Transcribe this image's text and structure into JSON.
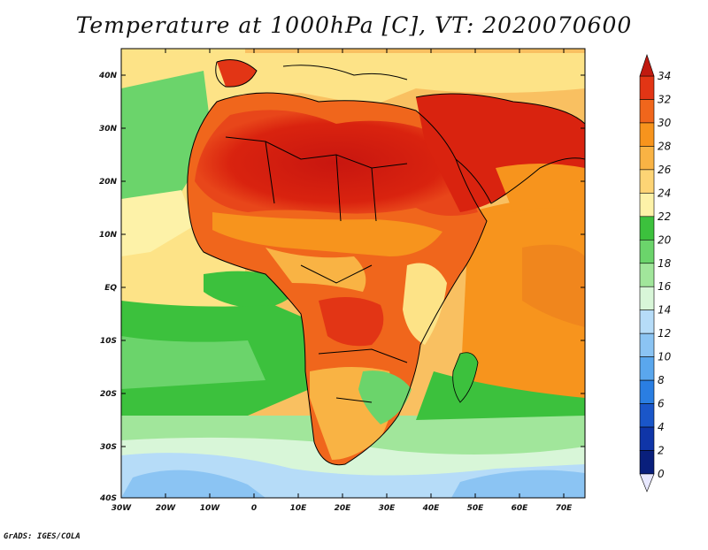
{
  "title": "Temperature at 1000hPa [C], VT: 2020070600",
  "credit": "GrADS: IGES/COLA",
  "map": {
    "lat_labels": [
      "40N",
      "30N",
      "20N",
      "10N",
      "EQ",
      "10S",
      "20S",
      "30S",
      "40S"
    ],
    "lon_labels": [
      "30W",
      "20W",
      "10W",
      "0",
      "10E",
      "20E",
      "30E",
      "40E",
      "50E",
      "60E",
      "70E"
    ],
    "variable": "Temperature at 1000hPa",
    "units": "C"
  },
  "colorbar": {
    "labels": [
      "34",
      "32",
      "30",
      "28",
      "26",
      "24",
      "22",
      "20",
      "18",
      "16",
      "14",
      "12",
      "10",
      "8",
      "6",
      "4",
      "2",
      "0"
    ],
    "colors": [
      "#c01a10",
      "#e23515",
      "#f0661c",
      "#f7941d",
      "#f9b344",
      "#fdd475",
      "#fdf2a8",
      "#3cc13d",
      "#6bd46b",
      "#a1e69b",
      "#d8f6d8",
      "#b6dcf8",
      "#8bc4f3",
      "#5aa7ed",
      "#2a7ee2",
      "#1a56c9",
      "#0f35a8",
      "#091f7c",
      "#041266"
    ],
    "over_color": "#c01a10",
    "under_color": "#e8e8ff"
  },
  "legend": {}
}
